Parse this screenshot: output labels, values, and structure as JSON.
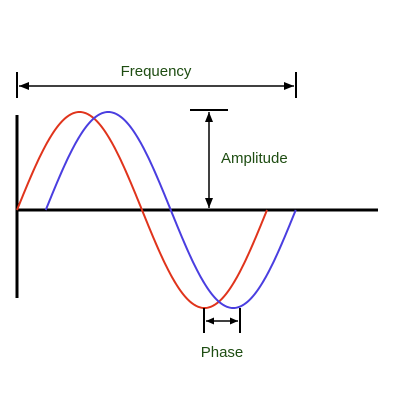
{
  "labels": {
    "frequency": "Frequency",
    "amplitude": "Amplitude",
    "phase": "Phase"
  },
  "colors": {
    "label_text": "#1e4d12",
    "axis": "#000000",
    "wave_reference": "#e0341c",
    "wave_shifted": "#4a3ee0",
    "background": "#ffffff"
  },
  "waves": [
    {
      "id": "reference",
      "phase_offset_fraction": 0.0
    },
    {
      "id": "shifted",
      "phase_offset_fraction": 0.115
    }
  ]
}
